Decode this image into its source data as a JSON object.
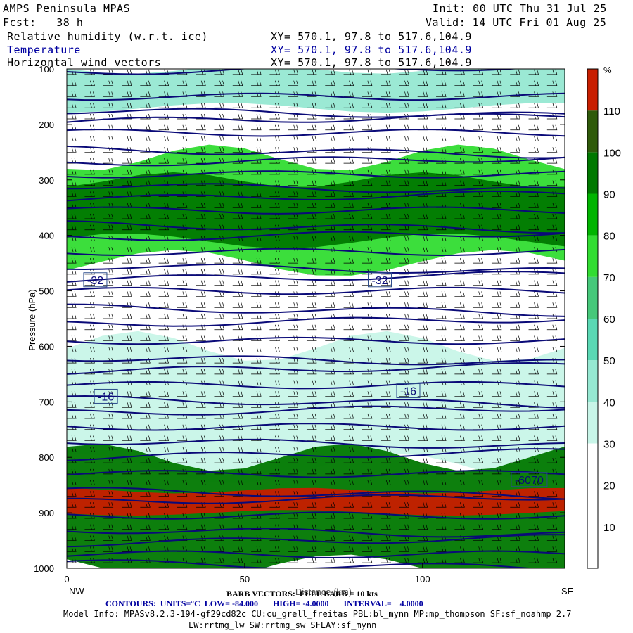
{
  "header": {
    "model": "AMPS Peninsula MPAS",
    "init": "Init: 00 UTC Thu 31 Jul 25",
    "fcst": "Fcst:   38 h",
    "valid": "Valid: 14 UTC Fri 01 Aug 25",
    "fields": [
      {
        "label": "Relative humidity (w.r.t. ice)",
        "xy": "XY= 570.1, 97.8 to 517.6,104.9"
      },
      {
        "label": "Temperature",
        "xy": "XY= 570.1, 97.8 to 517.6,104.9"
      },
      {
        "label": "Horizontal wind vectors",
        "xy": "XY= 570.1, 97.8 to 517.6,104.9"
      }
    ]
  },
  "colorbar": {
    "unit": "%",
    "levels": [
      10,
      20,
      30,
      40,
      50,
      60,
      70,
      80,
      90,
      100,
      110
    ],
    "colors": [
      "#ffffff",
      "#ffffff",
      "#ffffff",
      "#c8f5e8",
      "#96e8d2",
      "#5ad8b4",
      "#46c87a",
      "#32dc32",
      "#00b400",
      "#007800",
      "#2f5a0a",
      "#c81e00"
    ]
  },
  "chart_data": {
    "type": "heatmap",
    "xlabel": "Distance (km)",
    "ylabel": "Pressure (hPa)",
    "x_range": [
      0,
      140
    ],
    "x_ticks": [
      0,
      50,
      100
    ],
    "y_range": [
      1000,
      100
    ],
    "y_ticks": [
      100,
      200,
      300,
      400,
      500,
      600,
      700,
      800,
      900,
      1000
    ],
    "left_label": "NW",
    "right_label": "SE",
    "contour_labels": [
      {
        "text": "-32",
        "x": 8,
        "p": 480
      },
      {
        "text": "-32",
        "x": 88,
        "p": 480
      },
      {
        "text": "-16",
        "x": 11,
        "p": 690
      },
      {
        "text": "-16",
        "x": 96,
        "p": 680
      },
      {
        "text": "-6070",
        "x": 130,
        "p": 840
      }
    ],
    "rh_layers": [
      {
        "p_top": 100,
        "p_bot": 170,
        "rh": 45
      },
      {
        "p_top": 260,
        "p_bot": 450,
        "rh": 70
      },
      {
        "p_top": 300,
        "p_bot": 410,
        "rh": 95
      },
      {
        "p_top": 600,
        "p_bot": 820,
        "rh": 35
      },
      {
        "p_top": 800,
        "p_bot": 1000,
        "rh": 90
      },
      {
        "p_top": 860,
        "p_bot": 900,
        "rh": 112
      }
    ]
  },
  "footer": {
    "barb": "BARB VECTORS:  FULL BARB = 10 kts",
    "contours": "CONTOURS:  UNITS=°C  LOW= -84.000       HIGH= -4.0000       INTERVAL=    4.0000",
    "model_info": "Model Info: MPASv8.2.3-194-gf29cd82c CU:cu_grell_freitas PBL:bl_mynn MP:mp_thompson SF:sf_noahmp 2.7",
    "model_info2": "LW:rrtmg_lw SW:rrtmg_sw SFLAY:sf_mynn"
  }
}
